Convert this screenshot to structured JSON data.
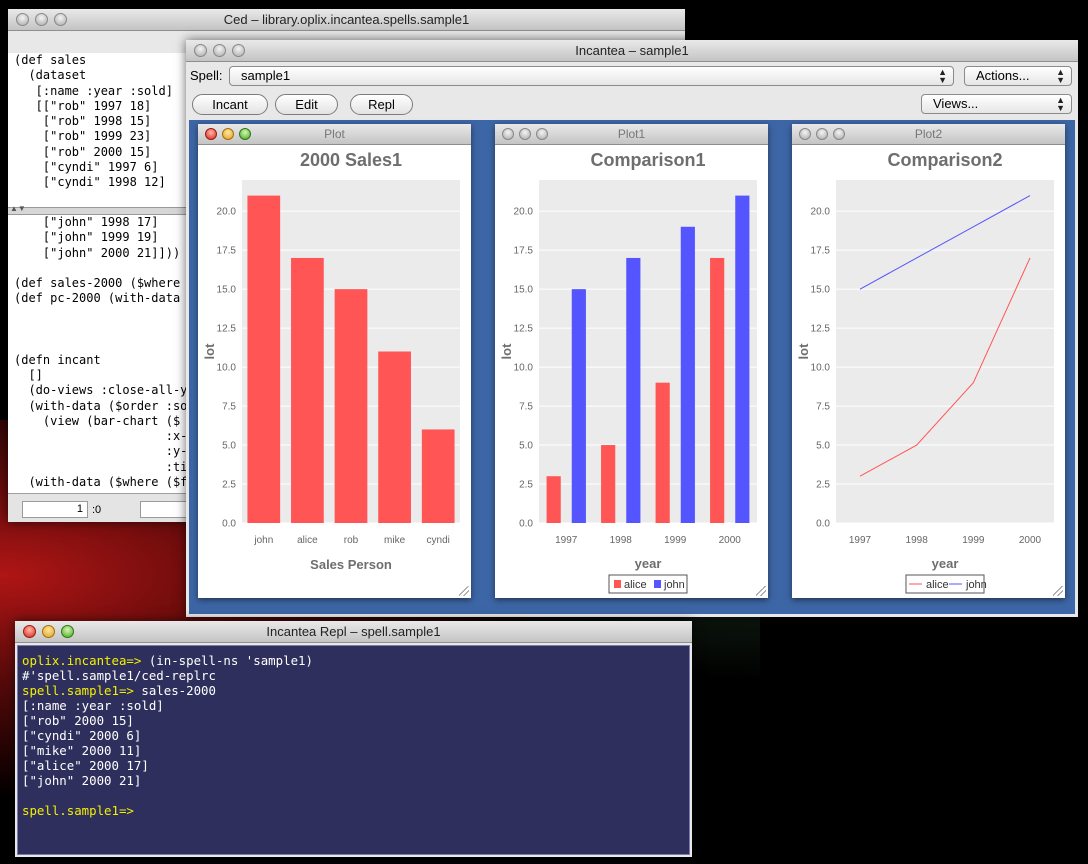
{
  "ced": {
    "title": "Ced – library.oplix.incantea.spells.sample1",
    "code_top": "(def sales\n  (dataset\n   [:name :year :sold]\n   [[\"rob\" 1997 18]\n    [\"rob\" 1998 15]\n    [\"rob\" 1999 23]\n    [\"rob\" 2000 15]\n    [\"cyndi\" 1997 6]\n    [\"cyndi\" 1998 12]",
    "code_bottom": "    [\"john\" 1998 17]\n    [\"john\" 1999 19]\n    [\"john\" 2000 21]]))\n\n(def sales-2000 ($where {\n(def pc-2000 (with-data (\n\n\n\n(defn incant\n  []\n  (do-views :close-all-ye\n  (with-data ($order :sol\n    (view (bar-chart ($ :\n                     :x-l\n                     :y-l\n                     :tit\n  (with-data ($where ($fn",
    "status_line": "1",
    "status_col": ":0"
  },
  "incantea": {
    "title": "Incantea – sample1",
    "spell_label": "Spell:",
    "spell_value": "sample1",
    "actions_label": "Actions...",
    "views_label": "Views...",
    "buttons": [
      "Incant",
      "Edit",
      "Repl"
    ]
  },
  "plots": [
    {
      "window_title": "Plot",
      "chart_data": {
        "type": "bar",
        "title": "2000 Sales1",
        "xlabel": "Sales Person",
        "ylabel": "lot",
        "categories": [
          "john",
          "alice",
          "rob",
          "mike",
          "cyndi"
        ],
        "values": [
          21,
          17,
          15,
          11,
          6
        ],
        "ylim": [
          0,
          22
        ],
        "yticks": [
          0.0,
          2.5,
          5.0,
          7.5,
          10.0,
          12.5,
          15.0,
          17.5,
          20.0
        ],
        "color": "#ff5555",
        "grid": true
      }
    },
    {
      "window_title": "Plot1",
      "chart_data": {
        "type": "bar",
        "title": "Comparison1",
        "xlabel": "year",
        "ylabel": "lot",
        "categories": [
          "1997",
          "1998",
          "1999",
          "2000"
        ],
        "series": [
          {
            "name": "alice",
            "values": [
              3,
              5,
              9,
              17
            ],
            "color": "#ff5555"
          },
          {
            "name": "john",
            "values": [
              15,
              17,
              19,
              21
            ],
            "color": "#5555ff"
          }
        ],
        "ylim": [
          0,
          22
        ],
        "yticks": [
          0.0,
          2.5,
          5.0,
          7.5,
          10.0,
          12.5,
          15.0,
          17.5,
          20.0
        ],
        "legend": "bottom",
        "grid": true
      }
    },
    {
      "window_title": "Plot2",
      "chart_data": {
        "type": "line",
        "title": "Comparison2",
        "xlabel": "year",
        "ylabel": "lot",
        "categories": [
          "1997",
          "1998",
          "1999",
          "2000"
        ],
        "series": [
          {
            "name": "alice",
            "values": [
              3,
              5,
              9,
              17
            ],
            "color": "#ff5555"
          },
          {
            "name": "john",
            "values": [
              15,
              17,
              19,
              21
            ],
            "color": "#5555ff"
          }
        ],
        "ylim": [
          0,
          22
        ],
        "yticks": [
          0.0,
          2.5,
          5.0,
          7.5,
          10.0,
          12.5,
          15.0,
          17.5,
          20.0
        ],
        "legend": "bottom",
        "grid": true
      }
    }
  ],
  "repl": {
    "title": "Incantea Repl – spell.sample1",
    "lines": [
      {
        "prompt": "oplix.incantea=> ",
        "text": "(in-spell-ns 'sample1)"
      },
      {
        "prompt": "",
        "text": "#'spell.sample1/ced-replrc"
      },
      {
        "prompt": "spell.sample1=> ",
        "text": "sales-2000"
      },
      {
        "prompt": "",
        "text": "[:name :year :sold]"
      },
      {
        "prompt": "",
        "text": "[\"rob\" 2000 15]"
      },
      {
        "prompt": "",
        "text": "[\"cyndi\" 2000 6]"
      },
      {
        "prompt": "",
        "text": "[\"mike\" 2000 11]"
      },
      {
        "prompt": "",
        "text": "[\"alice\" 2000 17]"
      },
      {
        "prompt": "",
        "text": "[\"john\" 2000 21]"
      },
      {
        "prompt": "",
        "text": ""
      },
      {
        "prompt": "spell.sample1=>",
        "text": ""
      }
    ]
  }
}
